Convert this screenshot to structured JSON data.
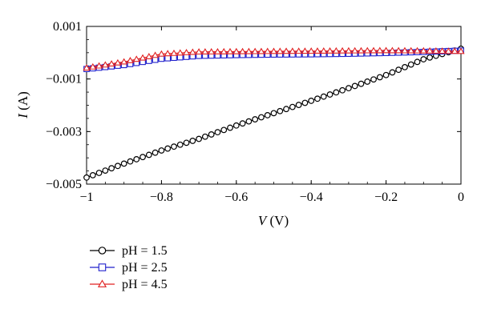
{
  "chart_data": {
    "type": "line",
    "xlabel_var": "V",
    "xlabel_unit": "(V)",
    "ylabel_var": "I",
    "ylabel_unit": "(A)",
    "xlim": [
      -1,
      0
    ],
    "ylim": [
      -0.005,
      0.001
    ],
    "x_ticks": [
      -1,
      -0.8,
      -0.6,
      -0.4,
      -0.2,
      0
    ],
    "x_tick_labels": [
      "−1",
      "−0.8",
      "−0.6",
      "−0.4",
      "−0.2",
      "0"
    ],
    "y_ticks": [
      0.001,
      -0.001,
      -0.003,
      -0.005
    ],
    "y_tick_labels": [
      "0.001",
      "−0.001",
      "−0.003",
      "−0.005"
    ],
    "grid": false,
    "legend_position": "bottom-left, below plot",
    "series": [
      {
        "name": "pH = 1.5",
        "color": "#000000",
        "marker": "circle",
        "x": [
          -1,
          -0.9,
          -0.8,
          -0.7,
          -0.6,
          -0.5,
          -0.4,
          -0.3,
          -0.2,
          -0.1,
          0
        ],
        "y": [
          -0.00475,
          -0.00422,
          -0.00372,
          -0.00328,
          -0.00277,
          -0.0023,
          -0.00183,
          -0.00135,
          -0.00085,
          -0.00025,
          0.00015
        ]
      },
      {
        "name": "pH = 2.5",
        "color": "#1f1fcc",
        "marker": "square",
        "x": [
          -1,
          -0.9,
          -0.8,
          -0.7,
          -0.6,
          -0.5,
          -0.4,
          -0.3,
          -0.2,
          -0.1,
          0
        ],
        "y": [
          -0.00062,
          -0.00047,
          -0.00023,
          -0.00012,
          -9e-05,
          -7e-05,
          -6e-05,
          -4e-05,
          -1e-05,
          3e-05,
          8e-05
        ]
      },
      {
        "name": "pH = 4.5",
        "color": "#e02020",
        "marker": "triangle",
        "x": [
          -1,
          -0.9,
          -0.8,
          -0.7,
          -0.6,
          -0.5,
          -0.4,
          -0.3,
          -0.2,
          -0.1,
          0
        ],
        "y": [
          -0.00058,
          -0.00035,
          -5e-05,
          3e-05,
          4e-05,
          5e-05,
          6e-05,
          7e-05,
          8e-05,
          7e-05,
          5e-05
        ]
      }
    ]
  }
}
